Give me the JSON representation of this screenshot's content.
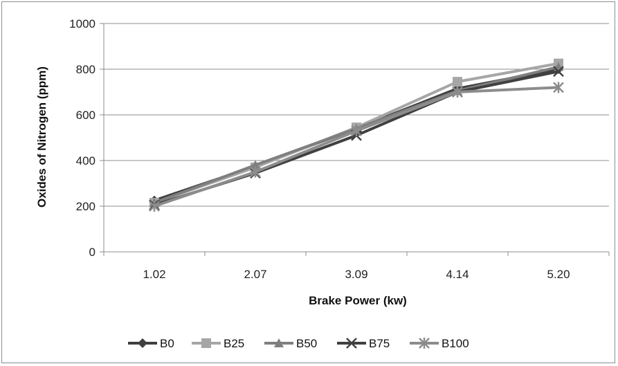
{
  "chart_data": {
    "type": "line",
    "title": "",
    "xlabel": "Brake Power (kw)",
    "ylabel": "Oxides of Nitrogen (ppm)",
    "categories": [
      "1.02",
      "2.07",
      "3.09",
      "4.14",
      "5.20"
    ],
    "ylim": [
      0,
      1000
    ],
    "yticks": [
      "0",
      "200",
      "400",
      "600",
      "800",
      "1000"
    ],
    "grid": "horizontal",
    "legend_position": "bottom",
    "series": [
      {
        "name": "B0",
        "values": [
          225,
          375,
          540,
          715,
          800
        ],
        "color": "#3f3f3f",
        "marker": "diamond"
      },
      {
        "name": "B25",
        "values": [
          215,
          370,
          545,
          745,
          825
        ],
        "color": "#a6a6a6",
        "marker": "square"
      },
      {
        "name": "B50",
        "values": [
          215,
          380,
          540,
          705,
          810
        ],
        "color": "#7f7f7f",
        "marker": "triangle"
      },
      {
        "name": "B75",
        "values": [
          205,
          345,
          510,
          700,
          790
        ],
        "color": "#404040",
        "marker": "x"
      },
      {
        "name": "B100",
        "values": [
          200,
          350,
          530,
          700,
          720
        ],
        "color": "#8c8c8c",
        "marker": "star"
      }
    ]
  }
}
